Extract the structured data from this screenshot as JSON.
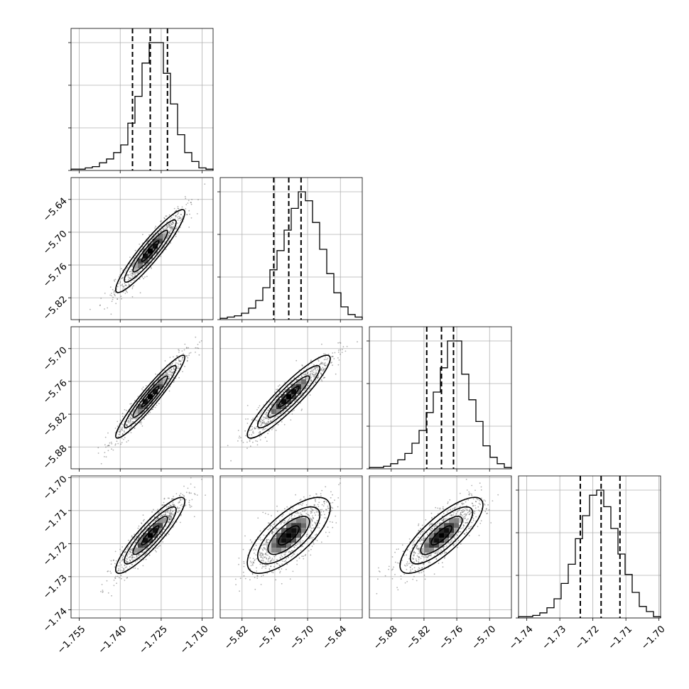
{
  "chart_data": {
    "type": "corner",
    "n_params": 4,
    "param_labels": [
      "",
      "",
      "",
      ""
    ],
    "ranges": [
      [
        -1.758,
        -1.706
      ],
      [
        -5.86,
        -5.6
      ],
      [
        -5.92,
        -5.66
      ],
      [
        -1.7425,
        -1.6995
      ]
    ],
    "ticks": [
      [
        "−1.755",
        "−1.740",
        "−1.725",
        "−1.710"
      ],
      [
        "−5.82",
        "−5.76",
        "−5.70",
        "−5.64"
      ],
      [
        "−5.88",
        "−5.82",
        "−5.76",
        "−5.70"
      ],
      [
        "−1.74",
        "−1.73",
        "−1.72",
        "−1.71",
        "−1.70"
      ]
    ],
    "tick_values": [
      [
        -1.755,
        -1.74,
        -1.725,
        -1.71
      ],
      [
        -5.82,
        -5.76,
        -5.7,
        -5.64
      ],
      [
        -5.88,
        -5.82,
        -5.76,
        -5.7
      ],
      [
        -1.74,
        -1.73,
        -1.72,
        -1.71,
        -1.7
      ]
    ],
    "quantiles": [
      [
        -1.7355,
        -1.729,
        -1.7227
      ],
      [
        -5.762,
        -5.7345,
        -5.712
      ],
      [
        -5.815,
        -5.788,
        -5.766
      ],
      [
        -1.7238,
        -1.7175,
        -1.7118
      ]
    ],
    "histograms": [
      {
        "edges_from": -1.758,
        "edges_to": -1.706,
        "counts": [
          1,
          1,
          2,
          3,
          6,
          9,
          14,
          20,
          37,
          58,
          84,
          100,
          100,
          76,
          52,
          28,
          14,
          7,
          2,
          1
        ]
      },
      {
        "edges_from": -5.86,
        "edges_to": -5.6,
        "counts": [
          1,
          2,
          3,
          5,
          9,
          15,
          25,
          39,
          54,
          70,
          87,
          100,
          93,
          76,
          55,
          36,
          21,
          10,
          4,
          2
        ]
      },
      {
        "edges_from": -5.92,
        "edges_to": -5.66,
        "counts": [
          1,
          1,
          2,
          4,
          7,
          12,
          20,
          30,
          44,
          60,
          79,
          100,
          100,
          74,
          54,
          37,
          18,
          9,
          4,
          1
        ]
      },
      {
        "edges_from": -1.7425,
        "edges_to": -1.6995,
        "counts": [
          1,
          1,
          2,
          4,
          8,
          15,
          27,
          42,
          62,
          80,
          96,
          100,
          87,
          70,
          50,
          34,
          20,
          9,
          5,
          1
        ]
      }
    ],
    "pairs": [
      {
        "row": 1,
        "col": 0,
        "corr": 0.93
      },
      {
        "row": 2,
        "col": 0,
        "corr": 0.95
      },
      {
        "row": 2,
        "col": 1,
        "corr": 0.92
      },
      {
        "row": 3,
        "col": 0,
        "corr": 0.9
      },
      {
        "row": 3,
        "col": 1,
        "corr": 0.72
      },
      {
        "row": 3,
        "col": 2,
        "corr": 0.8
      }
    ],
    "marginal_sd": [
      0.0055,
      0.033,
      0.033,
      0.005
    ],
    "contour_levels_sigma": [
      0.5,
      1.0,
      1.5,
      2.0
    ],
    "grid": true,
    "colors": {
      "line": "#000000",
      "points": "#555555",
      "grid": "#b0b0b0"
    }
  }
}
